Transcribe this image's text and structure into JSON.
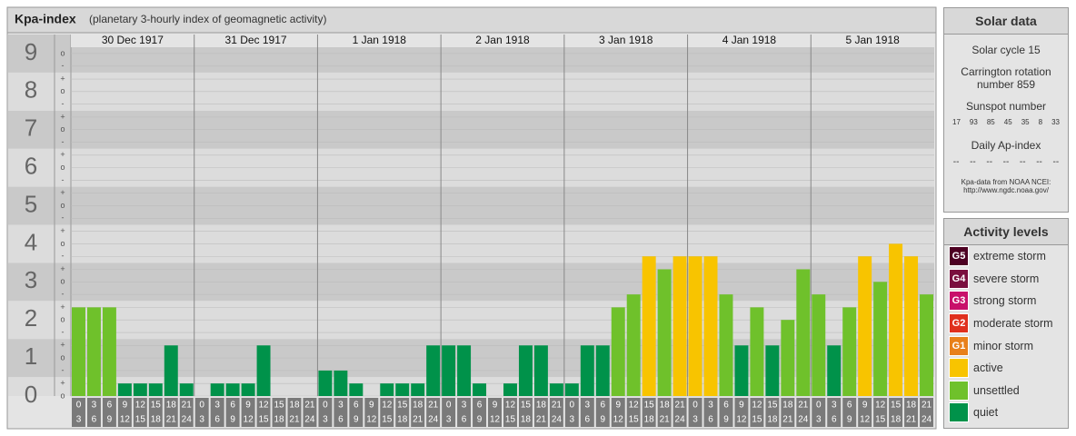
{
  "header": {
    "title": "Kpa-index",
    "subtitle": "(planetary 3-hourly index of geomagnetic activity)"
  },
  "chart_data": {
    "type": "bar",
    "days": [
      "30 Dec 1917",
      "31 Dec 1917",
      "1 Jan 1918",
      "2 Jan 1918",
      "3 Jan 1918",
      "4 Jan 1918",
      "5 Jan 1918"
    ],
    "hour_ranges": [
      [
        "0",
        "3"
      ],
      [
        "3",
        "6"
      ],
      [
        "6",
        "9"
      ],
      [
        "9",
        "12"
      ],
      [
        "12",
        "15"
      ],
      [
        "15",
        "18"
      ],
      [
        "18",
        "21"
      ],
      [
        "21",
        "24"
      ]
    ],
    "values": [
      2.33,
      2.33,
      2.33,
      0.33,
      0.33,
      0.33,
      1.33,
      0.33,
      0,
      0.33,
      0.33,
      0.33,
      1.33,
      0,
      0,
      0,
      0.67,
      0.67,
      0.33,
      0,
      0.33,
      0.33,
      0.33,
      1.33,
      1.33,
      1.33,
      0.33,
      0,
      0.33,
      1.33,
      1.33,
      0.33,
      0.33,
      1.33,
      1.33,
      2.33,
      2.67,
      3.67,
      3.33,
      3.67,
      3.67,
      3.67,
      2.67,
      1.33,
      2.33,
      1.33,
      2,
      3.33,
      2.67,
      1.33,
      2.33,
      3.67,
      3,
      4,
      3.67,
      2.67
    ],
    "colors": [
      "#6fc12b",
      "#6fc12b",
      "#6fc12b",
      "#00924a",
      "#00924a",
      "#00924a",
      "#00924a",
      "#00924a",
      "#00924a",
      "#00924a",
      "#00924a",
      "#00924a",
      "#00924a",
      "#00924a",
      "#00924a",
      "#00924a",
      "#00924a",
      "#00924a",
      "#00924a",
      "#00924a",
      "#00924a",
      "#00924a",
      "#00924a",
      "#00924a",
      "#00924a",
      "#00924a",
      "#00924a",
      "#00924a",
      "#00924a",
      "#00924a",
      "#00924a",
      "#00924a",
      "#00924a",
      "#00924a",
      "#00924a",
      "#6fc12b",
      "#6fc12b",
      "#f8c400",
      "#6fc12b",
      "#f8c400",
      "#f8c400",
      "#f8c400",
      "#6fc12b",
      "#00924a",
      "#6fc12b",
      "#00924a",
      "#6fc12b",
      "#6fc12b",
      "#6fc12b",
      "#00924a",
      "#6fc12b",
      "#f8c400",
      "#6fc12b",
      "#f8c400",
      "#f8c400",
      "#6fc12b"
    ],
    "ylim": [
      0,
      9.5
    ],
    "yticks": [
      0,
      1,
      2,
      3,
      4,
      5,
      6,
      7,
      8,
      9
    ],
    "minor_yticks": [
      {
        "value": 0,
        "label": "o"
      },
      {
        "value": 0.33,
        "label": "+"
      },
      {
        "value": 0.67,
        "label": "-"
      },
      {
        "value": 1,
        "label": "o"
      },
      {
        "value": 1.33,
        "label": "+"
      },
      {
        "value": 1.67,
        "label": "-"
      },
      {
        "value": 2,
        "label": "o"
      },
      {
        "value": 2.33,
        "label": "+"
      },
      {
        "value": 2.67,
        "label": "-"
      },
      {
        "value": 3,
        "label": "o"
      },
      {
        "value": 3.33,
        "label": "+"
      },
      {
        "value": 3.67,
        "label": "-"
      },
      {
        "value": 4,
        "label": "o"
      },
      {
        "value": 4.33,
        "label": "+"
      },
      {
        "value": 4.67,
        "label": "-"
      },
      {
        "value": 5,
        "label": "o"
      },
      {
        "value": 5.33,
        "label": "+"
      },
      {
        "value": 5.67,
        "label": "-"
      },
      {
        "value": 6,
        "label": "o"
      },
      {
        "value": 6.33,
        "label": "+"
      },
      {
        "value": 6.67,
        "label": "-"
      },
      {
        "value": 7,
        "label": "o"
      },
      {
        "value": 7.33,
        "label": "+"
      },
      {
        "value": 7.67,
        "label": "-"
      },
      {
        "value": 8,
        "label": "o"
      },
      {
        "value": 8.33,
        "label": "+"
      },
      {
        "value": 8.67,
        "label": "-"
      },
      {
        "value": 9,
        "label": "o"
      }
    ]
  },
  "solar_data": {
    "title": "Solar data",
    "cycle": "Solar cycle 15",
    "carrington": "Carrington rotation number 859",
    "sunspot_title": "Sunspot number",
    "sunspot_numbers": [
      17,
      93,
      85,
      45,
      35,
      8,
      33
    ],
    "ap_title": "Daily Ap-index",
    "ap_values": [
      "--",
      "--",
      "--",
      "--",
      "--",
      "--",
      "--"
    ],
    "source": "Kpa-data from NOAA NCEI:",
    "source_url": "http://www.ngdc.noaa.gov/"
  },
  "activity_levels": {
    "title": "Activity levels",
    "items": [
      {
        "badge": "G5",
        "label": "extreme storm",
        "color": "#4d0022"
      },
      {
        "badge": "G4",
        "label": "severe storm",
        "color": "#7a0f3e"
      },
      {
        "badge": "G3",
        "label": "strong storm",
        "color": "#c8106a"
      },
      {
        "badge": "G2",
        "label": "moderate storm",
        "color": "#e0301e"
      },
      {
        "badge": "G1",
        "label": "minor storm",
        "color": "#e8801a"
      },
      {
        "label": "active",
        "color": "#f8c400"
      },
      {
        "label": "unsettled",
        "color": "#6fc12b"
      },
      {
        "label": "quiet",
        "color": "#00924a"
      }
    ]
  }
}
